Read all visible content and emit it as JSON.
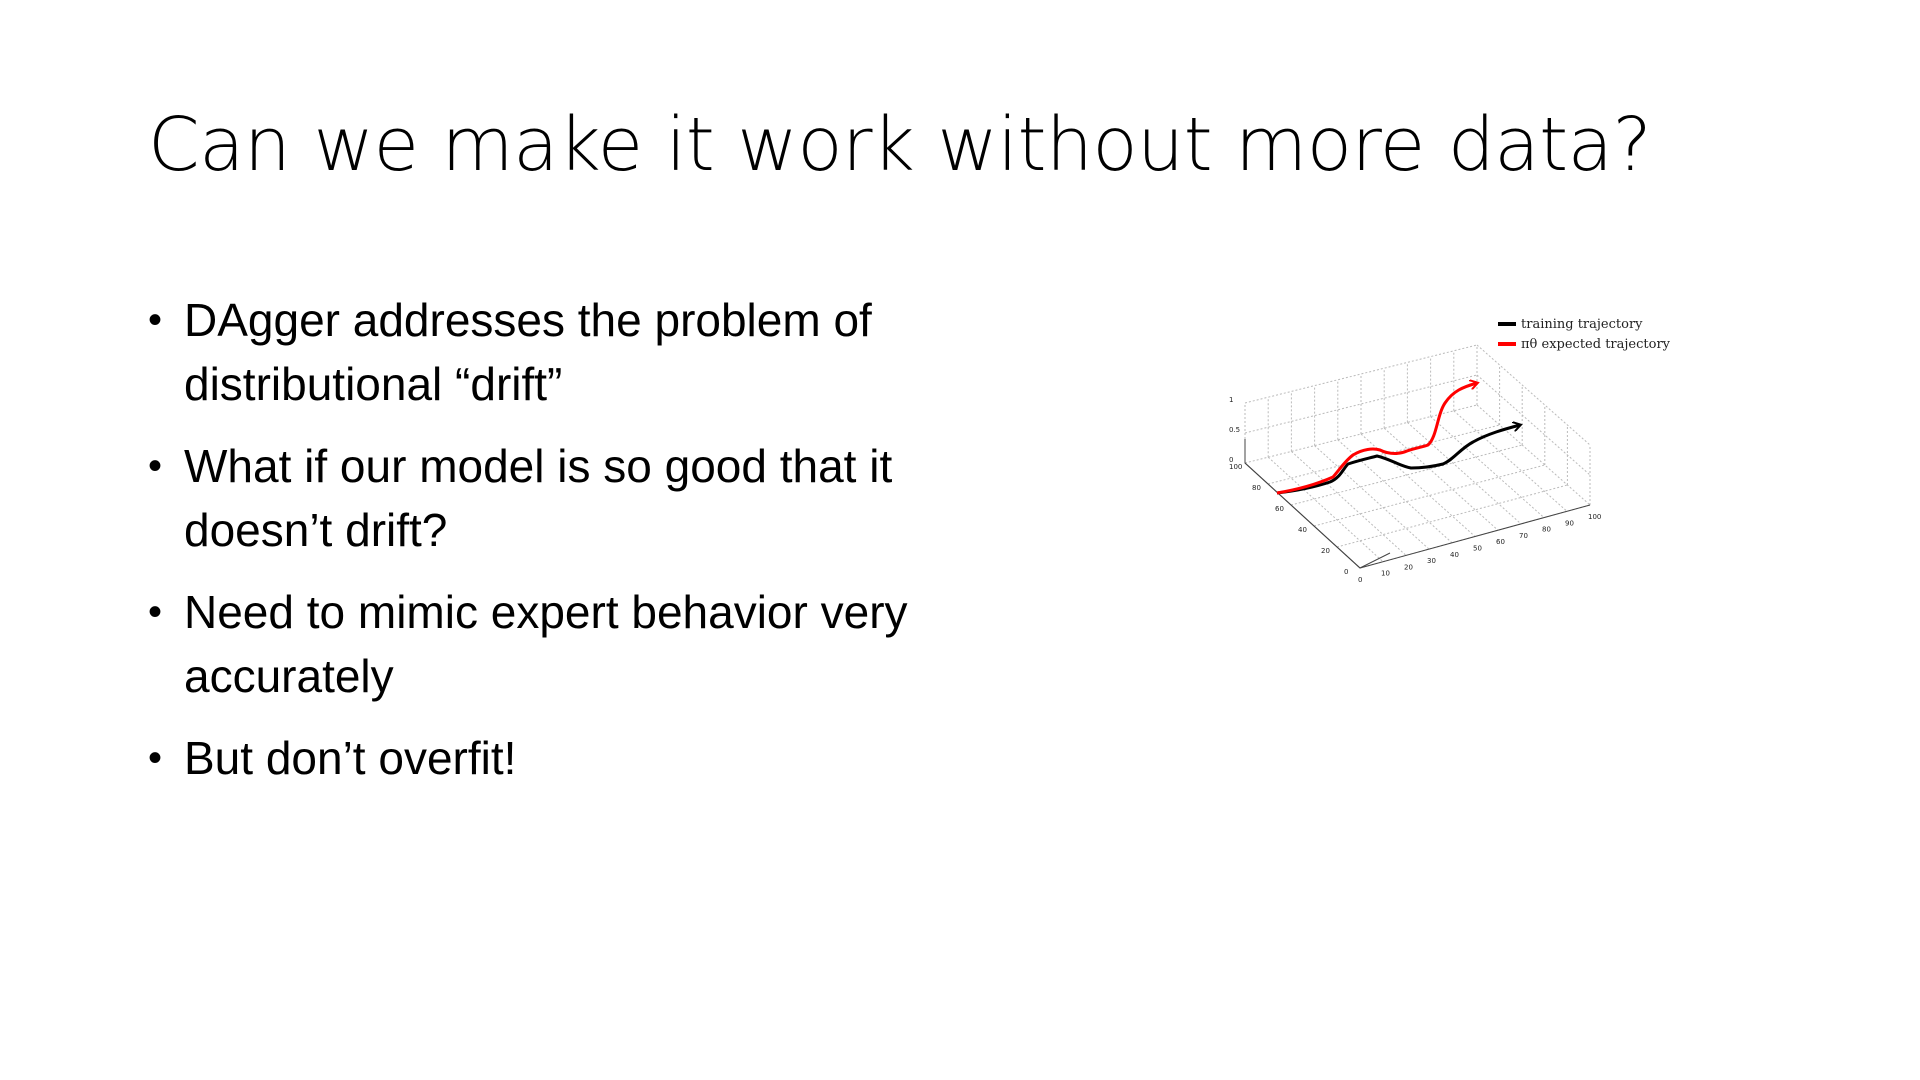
{
  "slide": {
    "title": "Can we make it work without more data?"
  },
  "bullets": [
    {
      "text": "DAgger addresses the problem of distributional “drift”"
    },
    {
      "text": "What if our model is so good that it doesn’t drift?"
    },
    {
      "text": "Need to mimic expert behavior very accurately"
    },
    {
      "text": "But don’t overfit!"
    }
  ],
  "chart_data": {
    "type": "line",
    "legend": [
      {
        "label": "training trajectory",
        "color": "#000000"
      },
      {
        "label": "πθ expected trajectory",
        "color": "#ff0000"
      }
    ],
    "legend_position": "top-right",
    "grid": true,
    "z_ticks": [
      "0",
      "0.5",
      "1"
    ],
    "y_ticks": [
      "0",
      "20",
      "40",
      "60",
      "80",
      "100"
    ],
    "x_ticks": [
      "0",
      "10",
      "20",
      "30",
      "40",
      "50",
      "60",
      "70",
      "80",
      "90",
      "100"
    ]
  }
}
